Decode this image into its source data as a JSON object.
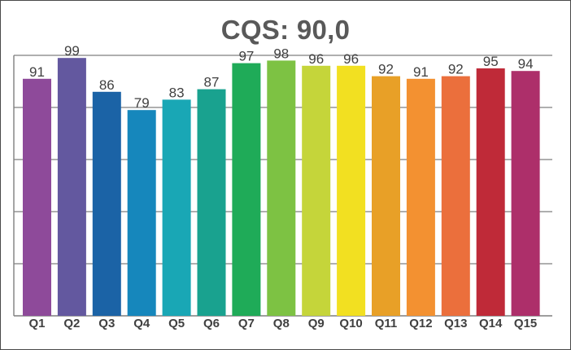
{
  "chart_data": {
    "type": "bar",
    "title": "CQS: 90,0",
    "xlabel": "",
    "ylabel": "",
    "categories": [
      "Q1",
      "Q2",
      "Q3",
      "Q4",
      "Q5",
      "Q6",
      "Q7",
      "Q8",
      "Q9",
      "Q10",
      "Q11",
      "Q12",
      "Q13",
      "Q14",
      "Q15"
    ],
    "values": [
      91,
      99,
      86,
      79,
      83,
      87,
      97,
      98,
      96,
      96,
      92,
      91,
      92,
      95,
      94
    ],
    "ylim": [
      0,
      100
    ],
    "y_ticks": [
      0,
      20,
      40,
      60,
      80,
      100
    ],
    "grid": true,
    "legend": "none",
    "colors": [
      "#8e4a9a",
      "#63589f",
      "#1b63a6",
      "#1687bc",
      "#19a7b5",
      "#19a28f",
      "#1fab58",
      "#7dc243",
      "#c5d53a",
      "#f2e021",
      "#e8a027",
      "#f39131",
      "#eb6f3c",
      "#bf2a38",
      "#ad2f6a"
    ]
  }
}
